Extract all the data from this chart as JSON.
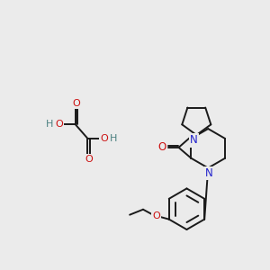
{
  "background_color": "#ebebeb",
  "figure_size": [
    3.0,
    3.0
  ],
  "dpi": 100,
  "bond_color": "#1a1a1a",
  "N_color": "#2222cc",
  "O_color": "#cc1111",
  "H_color": "#4a8080",
  "font_size": 7.5,
  "line_width": 1.4,
  "xlim": [
    0,
    300
  ],
  "ylim": [
    0,
    300
  ]
}
